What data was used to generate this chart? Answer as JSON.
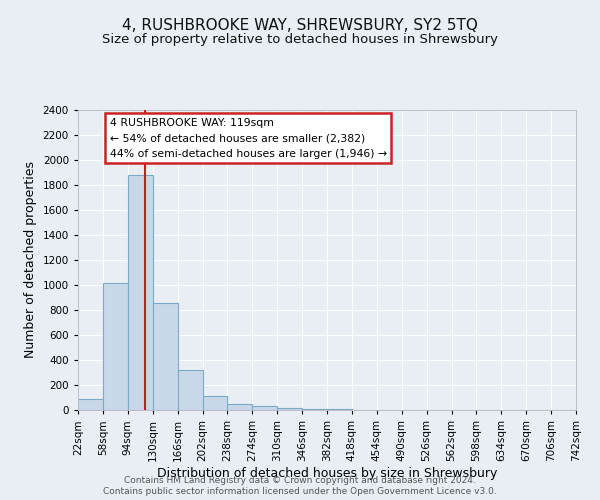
{
  "title": "4, RUSHBROOKE WAY, SHREWSBURY, SY2 5TQ",
  "subtitle": "Size of property relative to detached houses in Shrewsbury",
  "xlabel": "Distribution of detached houses by size in Shrewsbury",
  "ylabel": "Number of detached properties",
  "bin_edges": [
    22,
    58,
    94,
    130,
    166,
    202,
    238,
    274,
    310,
    346,
    382,
    418,
    454,
    490,
    526,
    562,
    598,
    634,
    670,
    706,
    742
  ],
  "bar_heights": [
    90,
    1020,
    1880,
    860,
    320,
    110,
    50,
    30,
    20,
    5,
    5,
    0,
    0,
    0,
    0,
    0,
    0,
    0,
    0,
    0
  ],
  "bar_color": "#c8d8e8",
  "bar_edge_color": "#7aaac8",
  "vline_x": 119,
  "vline_color": "#bb2222",
  "ylim": [
    0,
    2400
  ],
  "yticks": [
    0,
    200,
    400,
    600,
    800,
    1000,
    1200,
    1400,
    1600,
    1800,
    2000,
    2200,
    2400
  ],
  "tick_labels": [
    "22sqm",
    "58sqm",
    "94sqm",
    "130sqm",
    "166sqm",
    "202sqm",
    "238sqm",
    "274sqm",
    "310sqm",
    "346sqm",
    "382sqm",
    "418sqm",
    "454sqm",
    "490sqm",
    "526sqm",
    "562sqm",
    "598sqm",
    "634sqm",
    "670sqm",
    "706sqm",
    "742sqm"
  ],
  "annotation_title": "4 RUSHBROOKE WAY: 119sqm",
  "annotation_line1": "← 54% of detached houses are smaller (2,382)",
  "annotation_line2": "44% of semi-detached houses are larger (1,946) →",
  "annotation_box_color": "#ffffff",
  "annotation_box_edge": "#cc2222",
  "footer1": "Contains HM Land Registry data © Crown copyright and database right 2024.",
  "footer2": "Contains public sector information licensed under the Open Government Licence v3.0.",
  "bg_color": "#e8eef4",
  "grid_color": "#ffffff",
  "title_fontsize": 11,
  "subtitle_fontsize": 9.5,
  "axis_label_fontsize": 9,
  "tick_fontsize": 7.5,
  "footer_fontsize": 6.5
}
